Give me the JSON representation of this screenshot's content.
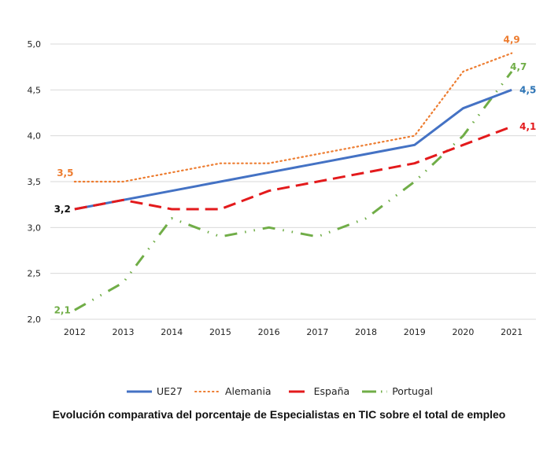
{
  "chart_data": {
    "type": "line",
    "title": "Evolución comparativa del porcentaje de Especialistas en TIC sobre el total de empleo",
    "xlabel": "",
    "ylabel": "",
    "categories": [
      "2012",
      "2013",
      "2014",
      "2015",
      "2016",
      "2017",
      "2018",
      "2019",
      "2020",
      "2021"
    ],
    "ylim": [
      2.0,
      5.0
    ],
    "yticks": [
      "2,0",
      "2,5",
      "3,0",
      "3,5",
      "4,0",
      "4,5",
      "5,0"
    ],
    "ytick_values": [
      2.0,
      2.5,
      3.0,
      3.5,
      4.0,
      4.5,
      5.0
    ],
    "grid": true,
    "legend_position": "bottom",
    "series": [
      {
        "name": "UE27",
        "color": "#4472C4",
        "style": "solid",
        "label_color": "#2E75B6",
        "values": [
          3.2,
          3.3,
          3.4,
          3.5,
          3.6,
          3.7,
          3.8,
          3.9,
          4.3,
          4.5
        ],
        "labels": [
          {
            "index": 9,
            "text": "4,5"
          }
        ]
      },
      {
        "name": "Alemania",
        "color": "#ED7D31",
        "style": "dotted",
        "label_color": "#ED7D31",
        "values": [
          3.5,
          3.5,
          3.6,
          3.7,
          3.7,
          3.8,
          3.9,
          4.0,
          4.7,
          4.9
        ],
        "labels": [
          {
            "index": 0,
            "text": "3,5"
          },
          {
            "index": 9,
            "text": "4,9"
          }
        ]
      },
      {
        "name": "España",
        "color": "#E31A1C",
        "style": "dashed",
        "label_color": "#E31A1C",
        "values": [
          3.2,
          3.3,
          3.2,
          3.2,
          3.4,
          3.5,
          3.6,
          3.7,
          3.9,
          4.1
        ],
        "labels": [
          {
            "index": 0,
            "text": "3,2",
            "color": "#111111"
          },
          {
            "index": 9,
            "text": "4,1"
          }
        ]
      },
      {
        "name": "Portugal",
        "color": "#70AD47",
        "style": "dashdotdot",
        "label_color": "#70AD47",
        "values": [
          2.1,
          2.4,
          3.1,
          2.9,
          3.0,
          2.9,
          3.1,
          3.5,
          4.0,
          4.7
        ],
        "labels": [
          {
            "index": 0,
            "text": "2,1"
          },
          {
            "index": 9,
            "text": "4,7"
          }
        ]
      }
    ]
  }
}
